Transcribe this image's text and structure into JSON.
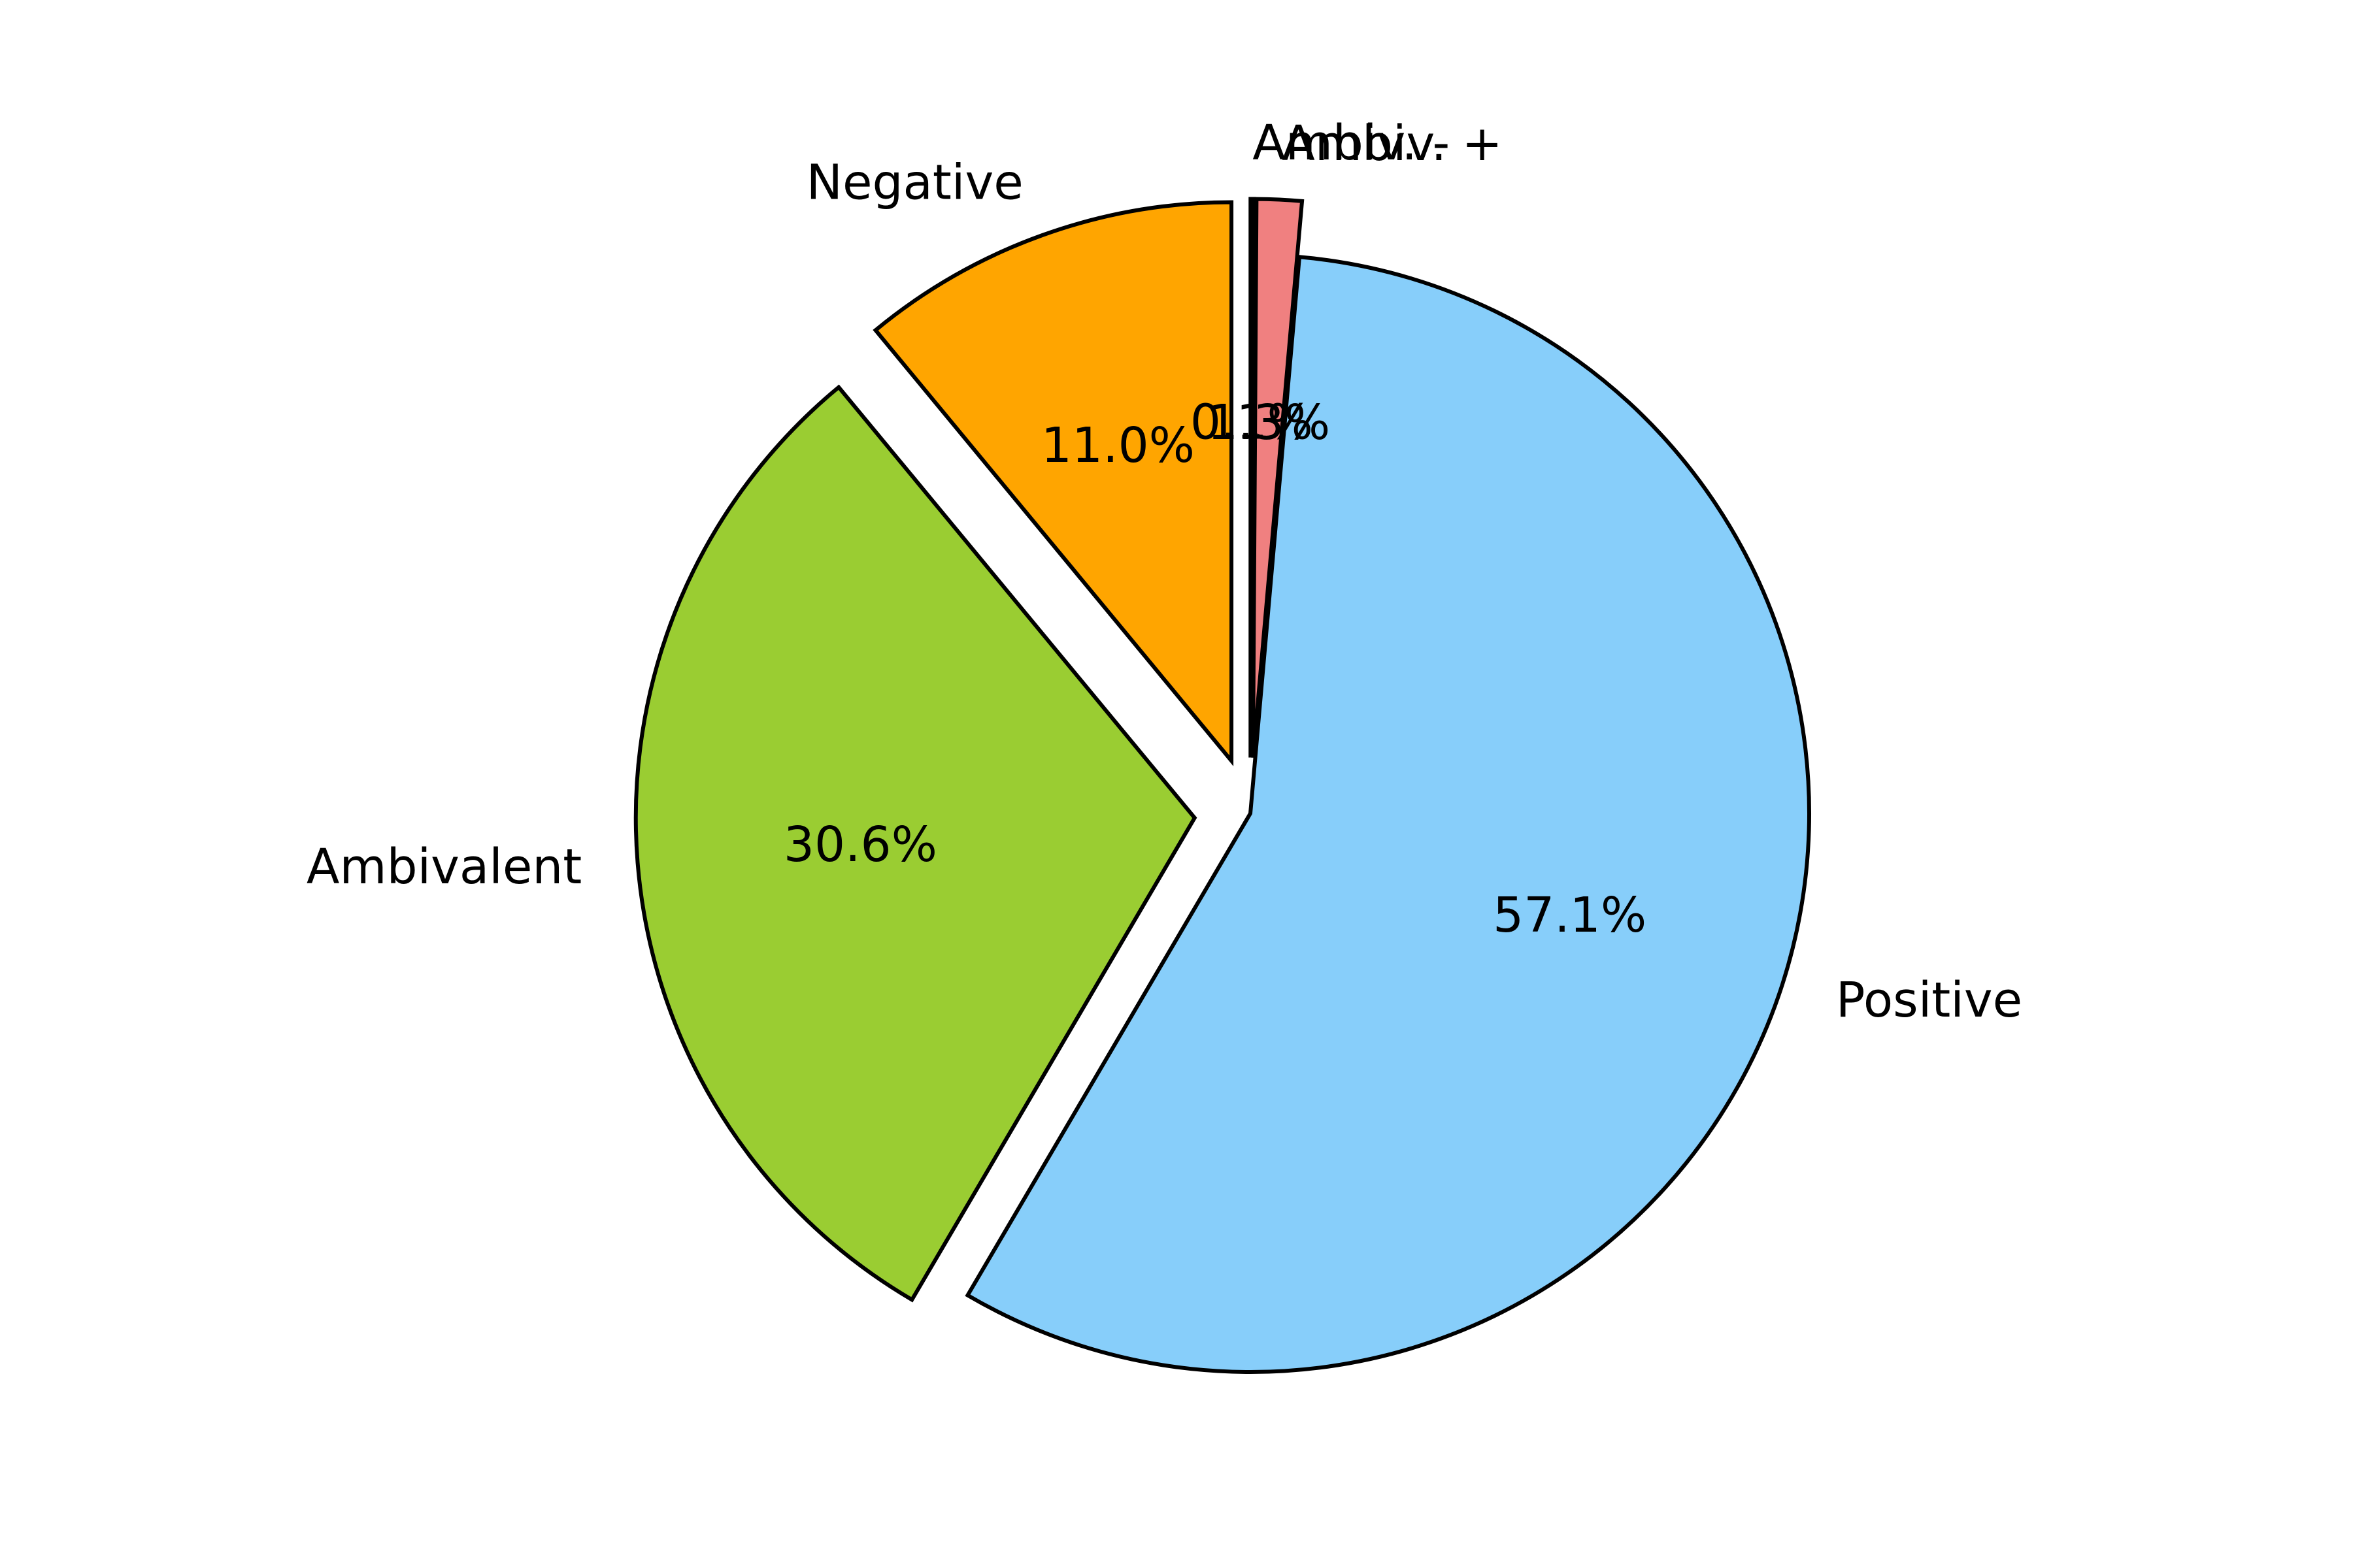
{
  "chart_data": {
    "type": "pie",
    "title": "",
    "start_angle_deg": 90,
    "direction": "counterclockwise",
    "edgecolor": "#000000",
    "slices": [
      {
        "label": "Negative",
        "value": 11.0,
        "pct_label": "11.0%",
        "color": "#FFA500",
        "explode": 0.1
      },
      {
        "label": "Ambivalent",
        "value": 30.6,
        "pct_label": "30.6%",
        "color": "#9ACD32",
        "explode": 0.1
      },
      {
        "label": "Positive",
        "value": 57.1,
        "pct_label": "57.1%",
        "color": "#87CEFA",
        "explode": 0.0
      },
      {
        "label": "Ambiv. +",
        "value": 1.3,
        "pct_label": "1.3%",
        "color": "#F08080",
        "explode": 0.1
      },
      {
        "label": "Ambiv. -",
        "value": 0.1,
        "pct_label": "0.1%",
        "color": "#000000",
        "explode": 0.1
      }
    ]
  }
}
